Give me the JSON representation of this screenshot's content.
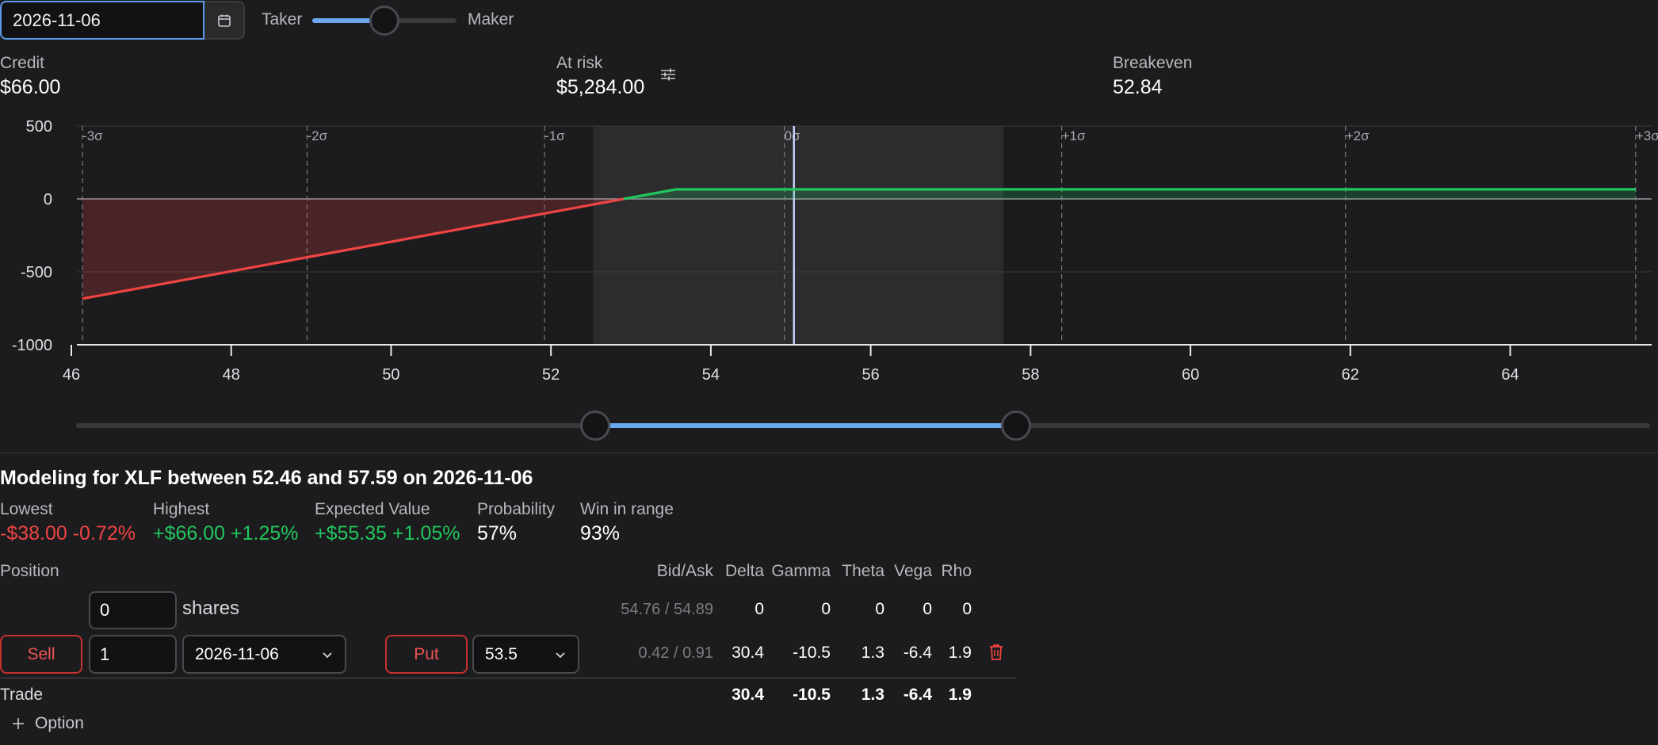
{
  "toolbar": {
    "date_value": "2026-11-06",
    "taker_label": "Taker",
    "maker_label": "Maker",
    "taker_maker_fraction": 0.5
  },
  "summary": {
    "credit_label": "Credit",
    "credit_value": "$66.00",
    "at_risk_label": "At risk",
    "at_risk_value": "$5,284.00",
    "breakeven_label": "Breakeven",
    "breakeven_value": "52.84"
  },
  "chart_data": {
    "type": "line",
    "x_ticks": [
      46,
      48,
      50,
      52,
      54,
      56,
      58,
      60,
      62,
      64
    ],
    "y_ticks": [
      500,
      0,
      -500,
      -1000
    ],
    "xlim": [
      46,
      65.7
    ],
    "ylim": [
      -1000,
      500
    ],
    "sigma_lines": [
      {
        "label": "-3σ",
        "x": 46.07
      },
      {
        "label": "-2σ",
        "x": 48.88
      },
      {
        "label": "-1σ",
        "x": 51.85
      },
      {
        "label": "0σ",
        "x": 54.85
      },
      {
        "label": "+1σ",
        "x": 58.32
      },
      {
        "label": "+2σ",
        "x": 61.87
      },
      {
        "label": "+3σ",
        "x": 65.5
      }
    ],
    "current_price": 54.97,
    "range_low": 52.46,
    "range_high": 57.59,
    "payoff": [
      {
        "x": 46.07,
        "y": -684
      },
      {
        "x": 52.84,
        "y": 0
      },
      {
        "x": 53.5,
        "y": 66
      },
      {
        "x": 65.5,
        "y": 66
      }
    ]
  },
  "range_slider": {
    "low_fraction": 0.33,
    "high_fraction": 0.597
  },
  "modeling": {
    "title": "Modeling for XLF between 52.46 and 57.59 on 2026-11-06",
    "lowest_label": "Lowest",
    "lowest_value": "-$38.00 -0.72%",
    "highest_label": "Highest",
    "highest_value": "+$66.00 +1.25%",
    "ev_label": "Expected Value",
    "ev_value": "+$55.35 +1.05%",
    "prob_label": "Probability",
    "prob_value": "57%",
    "win_label": "Win in range",
    "win_value": "93%"
  },
  "positions": {
    "position_label": "Position",
    "headers": [
      "Bid/Ask",
      "Delta",
      "Gamma",
      "Theta",
      "Vega",
      "Rho"
    ],
    "shares_row": {
      "qty": "0",
      "unit": "shares",
      "bid_ask": "54.76 / 54.89",
      "greeks": [
        "0",
        "0",
        "0",
        "0",
        "0"
      ]
    },
    "option_row": {
      "side": "Sell",
      "qty": "1",
      "expiry": "2026-11-06",
      "type": "Put",
      "strike": "53.5",
      "bid_ask": "0.42 / 0.91",
      "greeks": [
        "30.4",
        "-10.5",
        "1.3",
        "-6.4",
        "1.9"
      ]
    },
    "trade_label": "Trade",
    "trade_greeks": [
      "30.4",
      "-10.5",
      "1.3",
      "-6.4",
      "1.9"
    ],
    "add_option_label": "Option"
  },
  "colors": {
    "accent": "#6aa8f0",
    "profit": "#22c55e",
    "loss": "#ef4444"
  }
}
